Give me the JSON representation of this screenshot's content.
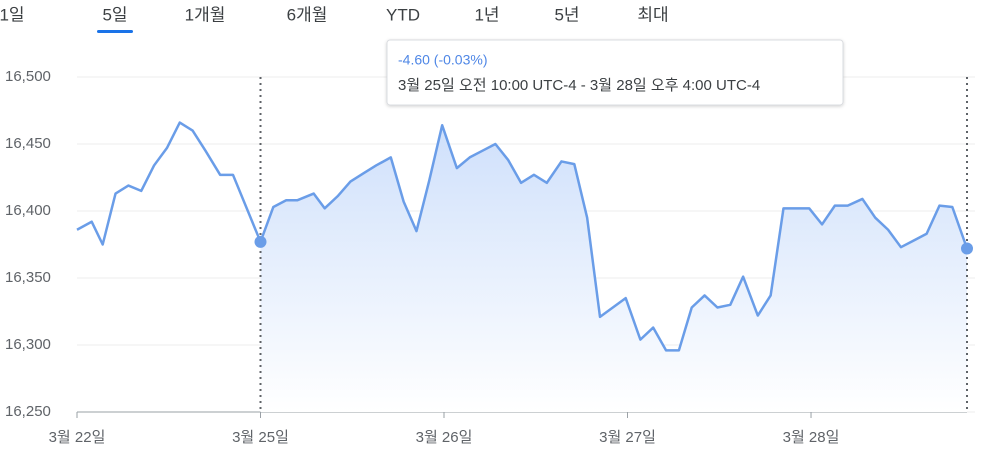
{
  "tabs": [
    "1일",
    "5일",
    "1개월",
    "6개월",
    "YTD",
    "1년",
    "5년",
    "최대"
  ],
  "selected_tab": 1,
  "tooltip": {
    "change": "-4.60 (-0.03%)",
    "range": "3월 25일 오전 10:00 UTC-4 - 3월 28일 오후 4:00 UTC-4"
  },
  "chart_data": {
    "type": "line",
    "color": "#6a9de8",
    "grid": true,
    "x": [
      0,
      0.08,
      0.14,
      0.21,
      0.28,
      0.35,
      0.42,
      0.49,
      0.56,
      0.63,
      0.7,
      0.78,
      0.85,
      1.0,
      1.07,
      1.14,
      1.2,
      1.29,
      1.35,
      1.42,
      1.49,
      1.56,
      1.63,
      1.71,
      1.78,
      1.85,
      1.92,
      1.99,
      2.07,
      2.14,
      2.21,
      2.28,
      2.35,
      2.42,
      2.49,
      2.56,
      2.64,
      2.71,
      2.78,
      2.85,
      2.92,
      2.99,
      3.07,
      3.14,
      3.21,
      3.28,
      3.35,
      3.42,
      3.49,
      3.56,
      3.63,
      3.71,
      3.78,
      3.85,
      3.92,
      3.99,
      4.06,
      4.13,
      4.2,
      4.28,
      4.35,
      4.42,
      4.49,
      4.56,
      4.63,
      4.7,
      4.77,
      4.85
    ],
    "values": [
      16386,
      16392,
      16375,
      16413,
      16419,
      16415,
      16434,
      16447,
      16466,
      16460,
      16445,
      16427,
      16427,
      16377,
      16403,
      16408,
      16408,
      16413,
      16402,
      16411,
      16422,
      16428,
      16434,
      16440,
      16407,
      16385,
      16423,
      16464,
      16432,
      16440,
      16445,
      16450,
      16438,
      16421,
      16427,
      16421,
      16437,
      16435,
      16395,
      16321,
      16328,
      16335,
      16304,
      16313,
      16296,
      16296,
      16328,
      16337,
      16328,
      16330,
      16351,
      16322,
      16337,
      16402,
      16402,
      16402,
      16390,
      16404,
      16404,
      16409,
      16395,
      16386,
      16373,
      16378,
      16383,
      16404,
      16403,
      16372
    ],
    "selection_xlim": [
      1.0,
      4.85
    ],
    "xlim": [
      0,
      4.85
    ],
    "xticks": [
      {
        "value": 0,
        "label": "3월 22일"
      },
      {
        "value": 1,
        "label": "3월 25일"
      },
      {
        "value": 2,
        "label": "3월 26일"
      },
      {
        "value": 3,
        "label": "3월 27일"
      },
      {
        "value": 4,
        "label": "3월 28일"
      }
    ],
    "ylim": [
      16250,
      16500
    ],
    "yticks": [
      {
        "value": 16250,
        "label": "16,250"
      },
      {
        "value": 16300,
        "label": "16,300"
      },
      {
        "value": 16350,
        "label": "16,350"
      },
      {
        "value": 16400,
        "label": "16,400"
      },
      {
        "value": 16450,
        "label": "16,450"
      },
      {
        "value": 16500,
        "label": "16,500"
      }
    ]
  }
}
